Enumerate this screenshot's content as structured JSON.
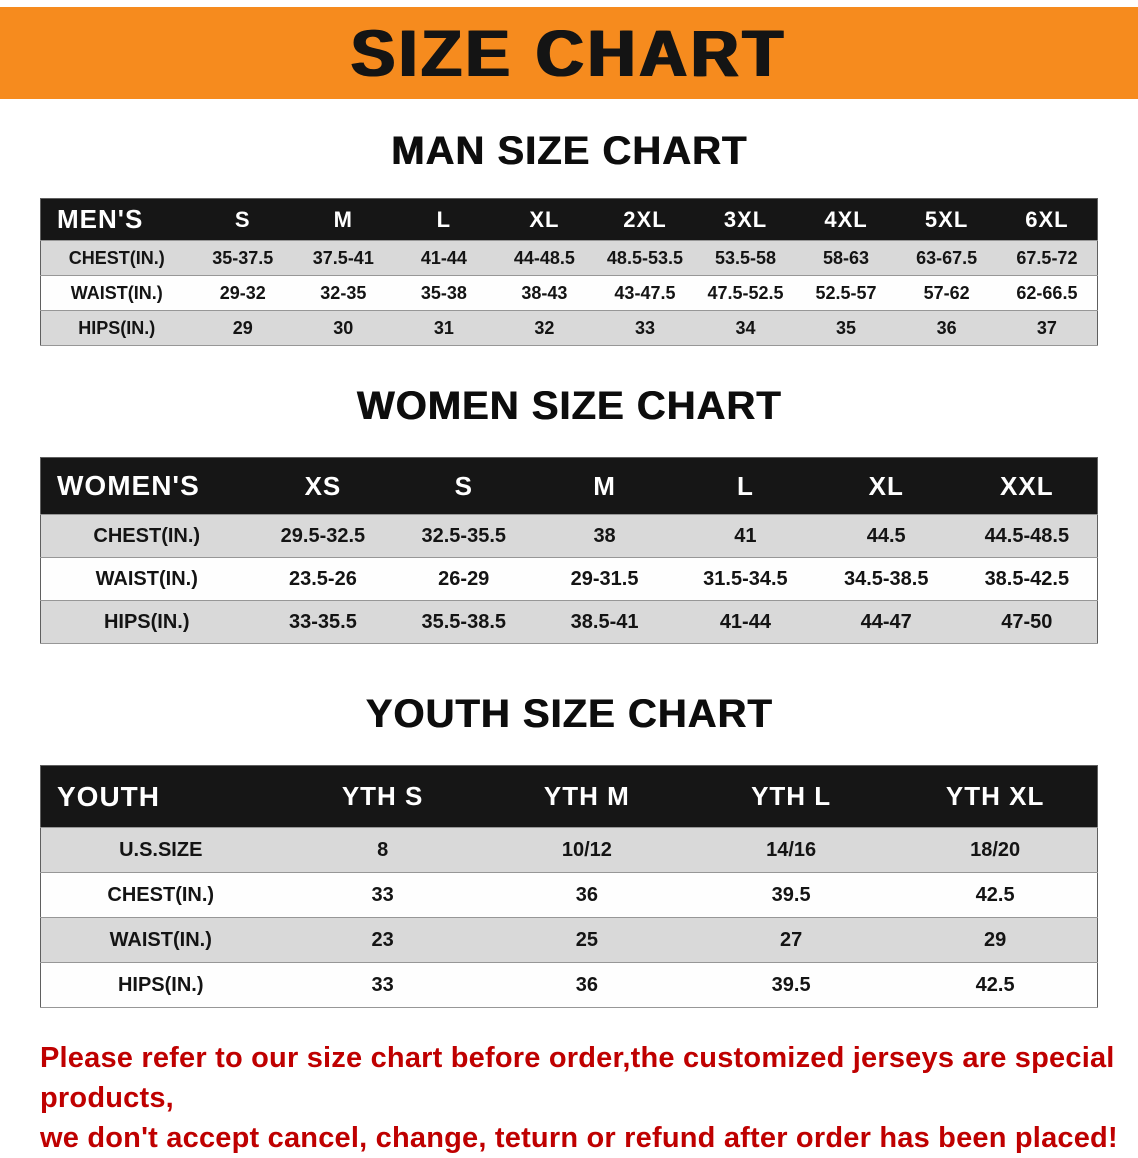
{
  "banner": {
    "title": "SIZE CHART",
    "background_color": "#F68B1E",
    "text_color": "#141414"
  },
  "sections": {
    "men": {
      "heading": "MAN SIZE CHART",
      "table": {
        "columns": [
          "MEN'S",
          "S",
          "M",
          "L",
          "XL",
          "2XL",
          "3XL",
          "4XL",
          "5XL",
          "6XL"
        ],
        "rows": [
          [
            "CHEST(IN.)",
            "35-37.5",
            "37.5-41",
            "41-44",
            "44-48.5",
            "48.5-53.5",
            "53.5-58",
            "58-63",
            "63-67.5",
            "67.5-72"
          ],
          [
            "WAIST(IN.)",
            "29-32",
            "32-35",
            "35-38",
            "38-43",
            "43-47.5",
            "47.5-52.5",
            "52.5-57",
            "57-62",
            "62-66.5"
          ],
          [
            "HIPS(IN.)",
            "29",
            "30",
            "31",
            "32",
            "33",
            "34",
            "35",
            "36",
            "37"
          ]
        ]
      }
    },
    "women": {
      "heading": "WOMEN SIZE CHART",
      "table": {
        "columns": [
          "WOMEN'S",
          "XS",
          "S",
          "M",
          "L",
          "XL",
          "XXL"
        ],
        "rows": [
          [
            "CHEST(IN.)",
            "29.5-32.5",
            "32.5-35.5",
            "38",
            "41",
            "44.5",
            "44.5-48.5"
          ],
          [
            "WAIST(IN.)",
            "23.5-26",
            "26-29",
            "29-31.5",
            "31.5-34.5",
            "34.5-38.5",
            "38.5-42.5"
          ],
          [
            "HIPS(IN.)",
            "33-35.5",
            "35.5-38.5",
            "38.5-41",
            "41-44",
            "44-47",
            "47-50"
          ]
        ]
      }
    },
    "youth": {
      "heading": "YOUTH SIZE CHART",
      "table": {
        "columns": [
          "YOUTH",
          "YTH S",
          "YTH M",
          "YTH L",
          "YTH XL"
        ],
        "rows": [
          [
            "U.S.SIZE",
            "8",
            "10/12",
            "14/16",
            "18/20"
          ],
          [
            "CHEST(IN.)",
            "33",
            "36",
            "39.5",
            "42.5"
          ],
          [
            "WAIST(IN.)",
            "23",
            "25",
            "27",
            "29"
          ],
          [
            "HIPS(IN.)",
            "33",
            "36",
            "39.5",
            "42.5"
          ]
        ]
      }
    }
  },
  "disclaimer": {
    "line1": "Please refer to our size chart before order,the customized jerseys are special products,",
    "line2": "we don't accept cancel, change, teturn or refund after order has been placed!",
    "text_color": "#bf0000"
  }
}
